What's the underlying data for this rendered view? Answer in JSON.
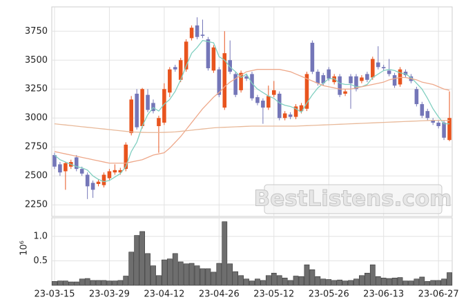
{
  "chart_data": {
    "type": "candlestick",
    "categories": [
      "23-03-15",
      null,
      null,
      null,
      null,
      null,
      null,
      null,
      null,
      null,
      "23-03-29",
      null,
      null,
      null,
      null,
      null,
      null,
      null,
      null,
      null,
      "23-04-12",
      null,
      null,
      null,
      null,
      null,
      null,
      null,
      null,
      null,
      "23-04-26",
      null,
      null,
      null,
      null,
      null,
      null,
      null,
      null,
      null,
      "23-05-12",
      null,
      null,
      null,
      null,
      null,
      null,
      null,
      null,
      null,
      "23-05-26",
      null,
      null,
      null,
      null,
      null,
      null,
      null,
      null,
      null,
      "23-06-13",
      null,
      null,
      null,
      null,
      null,
      null,
      null,
      null,
      null,
      "23-06-27",
      null,
      null
    ],
    "open": [
      2680,
      2600,
      2540,
      2580,
      2660,
      2560,
      2510,
      2440,
      2430,
      2420,
      2480,
      2530,
      2530,
      2560,
      2870,
      3210,
      2930,
      3200,
      3130,
      2930,
      2960,
      3220,
      3440,
      3330,
      3420,
      3690,
      3800,
      3720,
      3680,
      3410,
      3420,
      3090,
      3500,
      3380,
      3240,
      3360,
      3380,
      3180,
      3150,
      3090,
      3200,
      3210,
      3000,
      3030,
      3010,
      3060,
      3080,
      3650,
      3400,
      3370,
      3420,
      3310,
      3360,
      3210,
      3360,
      3360,
      3320,
      3380,
      3350,
      3480,
      3440,
      3410,
      3370,
      3290,
      3400,
      3360,
      3250,
      3120,
      3060,
      2980,
      2960,
      2960,
      2810
    ],
    "high": [
      2700,
      2620,
      2620,
      2640,
      2680,
      2580,
      2530,
      2460,
      2470,
      2530,
      2560,
      2600,
      2570,
      2790,
      3190,
      3250,
      3260,
      3250,
      3160,
      3020,
      3300,
      3440,
      3460,
      3520,
      3680,
      3800,
      3870,
      3850,
      3700,
      3630,
      3440,
      3750,
      3670,
      3400,
      3410,
      3380,
      3400,
      3200,
      3170,
      3280,
      3320,
      3230,
      3060,
      3050,
      3120,
      3130,
      3400,
      3670,
      3420,
      3390,
      3440,
      3380,
      3380,
      3250,
      3380,
      3380,
      3370,
      3400,
      3530,
      3620,
      3460,
      3510,
      3390,
      3440,
      3420,
      3380,
      3270,
      3140,
      3080,
      3000,
      2980,
      2980,
      3230
    ],
    "low": [
      2560,
      2500,
      2380,
      2560,
      2540,
      2500,
      2300,
      2310,
      2410,
      2400,
      2460,
      2510,
      2510,
      2540,
      2850,
      2900,
      2910,
      3050,
      3040,
      2700,
      2940,
      3180,
      3400,
      3310,
      3400,
      3670,
      3680,
      3690,
      3410,
      3390,
      3180,
      3070,
      3380,
      3180,
      3220,
      3320,
      3150,
      3110,
      2950,
      3070,
      3180,
      2980,
      2980,
      2990,
      2990,
      3040,
      3060,
      3380,
      3280,
      3280,
      3320,
      3290,
      3180,
      3190,
      3080,
      3230,
      3300,
      3310,
      3330,
      3420,
      3410,
      3360,
      3260,
      3270,
      3350,
      3300,
      3100,
      3000,
      2980,
      2940,
      2910,
      2810,
      2800
    ],
    "close": [
      2580,
      2530,
      2610,
      2620,
      2560,
      2520,
      2410,
      2380,
      2450,
      2510,
      2540,
      2550,
      2550,
      2770,
      3160,
      2920,
      3250,
      3070,
      3060,
      3000,
      3250,
      3420,
      3420,
      3500,
      3660,
      3780,
      3700,
      3710,
      3430,
      3610,
      3200,
      3560,
      3400,
      3200,
      3390,
      3340,
      3170,
      3130,
      3090,
      3190,
      3240,
      3000,
      3040,
      3010,
      3100,
      3110,
      3380,
      3400,
      3300,
      3300,
      3340,
      3360,
      3200,
      3230,
      3300,
      3250,
      3350,
      3330,
      3510,
      3440,
      3430,
      3380,
      3280,
      3420,
      3370,
      3320,
      3120,
      3020,
      3000,
      2960,
      2930,
      2830,
      3000
    ],
    "up_color": "#e8541e",
    "down_color": "#7476b8",
    "ylim": [
      2150,
      3960
    ],
    "yticks": [
      2250,
      2500,
      2750,
      3000,
      3250,
      3500,
      3750
    ],
    "grid": true,
    "moving_averages": [
      {
        "color": "#80cfc0",
        "values": [
          2680,
          2640,
          2620,
          2600,
          2580,
          2570,
          2550,
          2500,
          2470,
          2450,
          2460,
          2490,
          2520,
          2580,
          2710,
          2790,
          2930,
          3030,
          3090,
          3060,
          3120,
          3160,
          3230,
          3330,
          3450,
          3560,
          3610,
          3670,
          3660,
          3650,
          3530,
          3500,
          3440,
          3400,
          3350,
          3380,
          3300,
          3250,
          3220,
          3190,
          3170,
          3130,
          3110,
          3100,
          3080,
          3050,
          3130,
          3200,
          3260,
          3300,
          3340,
          3340,
          3300,
          3290,
          3290,
          3270,
          3270,
          3290,
          3350,
          3380,
          3410,
          3420,
          3410,
          3390,
          3380,
          3350,
          3300,
          3250,
          3170,
          3080,
          3010,
          2950,
          2950
        ]
      },
      {
        "color": "#eea88a",
        "values": [
          2710,
          2700,
          2690,
          2680,
          2670,
          2660,
          2650,
          2640,
          2630,
          2620,
          2610,
          2610,
          2610,
          2610,
          2620,
          2630,
          2640,
          2660,
          2680,
          2690,
          2700,
          2740,
          2790,
          2840,
          2900,
          2960,
          3020,
          3080,
          3130,
          3180,
          3220,
          3270,
          3310,
          3340,
          3370,
          3400,
          3410,
          3420,
          3420,
          3420,
          3420,
          3420,
          3410,
          3400,
          3380,
          3360,
          3340,
          3320,
          3300,
          3280,
          3270,
          3260,
          3250,
          3250,
          3250,
          3260,
          3270,
          3280,
          3290,
          3300,
          3310,
          3330,
          3340,
          3350,
          3350,
          3340,
          3330,
          3310,
          3300,
          3290,
          3270,
          3250,
          3240
        ]
      },
      {
        "color": "#e8b898",
        "values": [
          2950,
          2945,
          2940,
          2935,
          2930,
          2925,
          2920,
          2915,
          2910,
          2905,
          2900,
          2895,
          2890,
          2885,
          2880,
          2878,
          2876,
          2875,
          2875,
          2875,
          2876,
          2878,
          2880,
          2885,
          2890,
          2895,
          2900,
          2905,
          2910,
          2915,
          2918,
          2920,
          2922,
          2924,
          2926,
          2928,
          2930,
          2930,
          2930,
          2930,
          2930,
          2930,
          2930,
          2930,
          2930,
          2932,
          2934,
          2936,
          2938,
          2940,
          2942,
          2944,
          2946,
          2948,
          2950,
          2952,
          2954,
          2956,
          2958,
          2960,
          2962,
          2964,
          2966,
          2968,
          2970,
          2972,
          2974,
          2976,
          2978,
          2980,
          2980,
          2980,
          2980
        ]
      }
    ],
    "volume": {
      "color": "#6e6e6e",
      "scale_label": "10⁶",
      "ylim": [
        0,
        1.38
      ],
      "yticks": [
        0.5,
        {
          "value": 1,
          "label": "1.0"
        }
      ],
      "values": [
        0.08,
        0.09,
        0.09,
        0.07,
        0.07,
        0.13,
        0.14,
        0.1,
        0.1,
        0.1,
        0.09,
        0.09,
        0.1,
        0.19,
        0.68,
        1.02,
        1.1,
        0.65,
        0.4,
        0.2,
        0.52,
        0.54,
        0.65,
        0.48,
        0.44,
        0.45,
        0.4,
        0.34,
        0.34,
        0.27,
        0.45,
        1.3,
        0.44,
        0.28,
        0.2,
        0.13,
        0.09,
        0.13,
        0.1,
        0.2,
        0.25,
        0.2,
        0.15,
        0.1,
        0.19,
        0.18,
        0.42,
        0.32,
        0.18,
        0.13,
        0.12,
        0.1,
        0.11,
        0.09,
        0.1,
        0.13,
        0.2,
        0.25,
        0.42,
        0.18,
        0.15,
        0.14,
        0.15,
        0.16,
        0.09,
        0.09,
        0.13,
        0.17,
        0.08,
        0.1,
        0.1,
        0.13,
        0.26
      ]
    },
    "watermark": "BestListens.com"
  }
}
